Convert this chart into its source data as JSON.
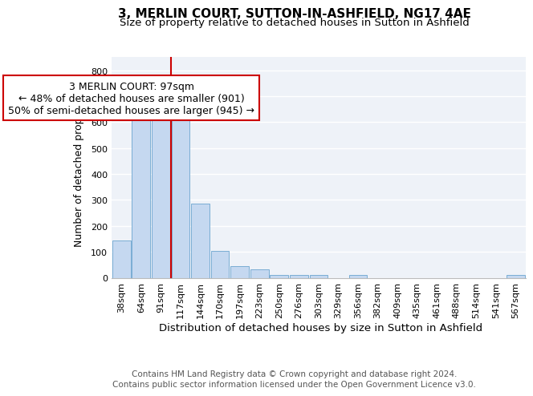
{
  "title": "3, MERLIN COURT, SUTTON-IN-ASHFIELD, NG17 4AE",
  "subtitle": "Size of property relative to detached houses in Sutton in Ashfield",
  "xlabel": "Distribution of detached houses by size in Sutton in Ashfield",
  "ylabel": "Number of detached properties",
  "footer_line1": "Contains HM Land Registry data © Crown copyright and database right 2024.",
  "footer_line2": "Contains public sector information licensed under the Open Government Licence v3.0.",
  "categories": [
    "38sqm",
    "64sqm",
    "91sqm",
    "117sqm",
    "144sqm",
    "170sqm",
    "197sqm",
    "223sqm",
    "250sqm",
    "276sqm",
    "303sqm",
    "329sqm",
    "356sqm",
    "382sqm",
    "409sqm",
    "435sqm",
    "461sqm",
    "488sqm",
    "514sqm",
    "541sqm",
    "567sqm"
  ],
  "values": [
    145,
    630,
    630,
    625,
    285,
    103,
    45,
    32,
    12,
    12,
    10,
    0,
    12,
    0,
    0,
    0,
    0,
    0,
    0,
    0,
    10
  ],
  "bar_color": "#c5d8f0",
  "bar_edge_color": "#7aadd4",
  "vline_x": 2.5,
  "vline_color": "#cc0000",
  "annotation_text": "3 MERLIN COURT: 97sqm\n← 48% of detached houses are smaller (901)\n50% of semi-detached houses are larger (945) →",
  "annotation_box_color": "#ffffff",
  "annotation_box_edge": "#cc0000",
  "ylim": [
    0,
    850
  ],
  "yticks": [
    0,
    100,
    200,
    300,
    400,
    500,
    600,
    700,
    800
  ],
  "bg_color": "#ffffff",
  "plot_bg_color": "#eef2f8",
  "grid_color": "#ffffff",
  "title_fontsize": 11,
  "subtitle_fontsize": 9.5,
  "ylabel_fontsize": 9,
  "xlabel_fontsize": 9.5,
  "tick_fontsize": 8,
  "annot_fontsize": 9,
  "footer_fontsize": 7.5
}
